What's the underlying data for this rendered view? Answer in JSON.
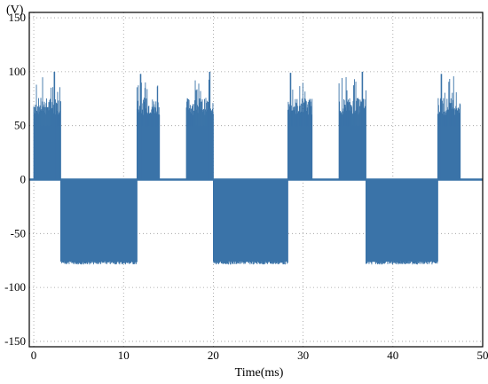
{
  "chart_data": {
    "type": "area",
    "title": "",
    "xlabel": "Time(ms)",
    "ylabel_unit": "(V)",
    "xlim": [
      -0.5,
      50
    ],
    "ylim": [
      -155,
      155
    ],
    "xticks": [
      0,
      10,
      20,
      30,
      40,
      50
    ],
    "yticks": [
      150,
      100,
      50,
      0,
      -50,
      -100,
      -150
    ],
    "grid": true,
    "series_color": "#3a73a8",
    "segments": [
      {
        "x_start": 0.0,
        "x_end": 3.0,
        "min": 0,
        "max": 80
      },
      {
        "x_start": 3.0,
        "x_end": 11.5,
        "min": -78,
        "max": 0
      },
      {
        "x_start": 11.5,
        "x_end": 14.0,
        "min": 0,
        "max": 80
      },
      {
        "x_start": 17.0,
        "x_end": 20.0,
        "min": 0,
        "max": 80
      },
      {
        "x_start": 20.0,
        "x_end": 28.3,
        "min": -78,
        "max": 0
      },
      {
        "x_start": 28.3,
        "x_end": 31.0,
        "min": 0,
        "max": 80
      },
      {
        "x_start": 34.0,
        "x_end": 37.0,
        "min": 0,
        "max": 80
      },
      {
        "x_start": 37.0,
        "x_end": 45.0,
        "min": -78,
        "max": 0
      },
      {
        "x_start": 45.0,
        "x_end": 47.5,
        "min": 0,
        "max": 80
      }
    ],
    "peaks": [
      {
        "x": 2.3,
        "y": 100
      },
      {
        "x": 11.9,
        "y": 98
      },
      {
        "x": 19.6,
        "y": 100
      },
      {
        "x": 28.6,
        "y": 99
      },
      {
        "x": 36.6,
        "y": 100
      },
      {
        "x": 45.4,
        "y": 98
      }
    ]
  }
}
